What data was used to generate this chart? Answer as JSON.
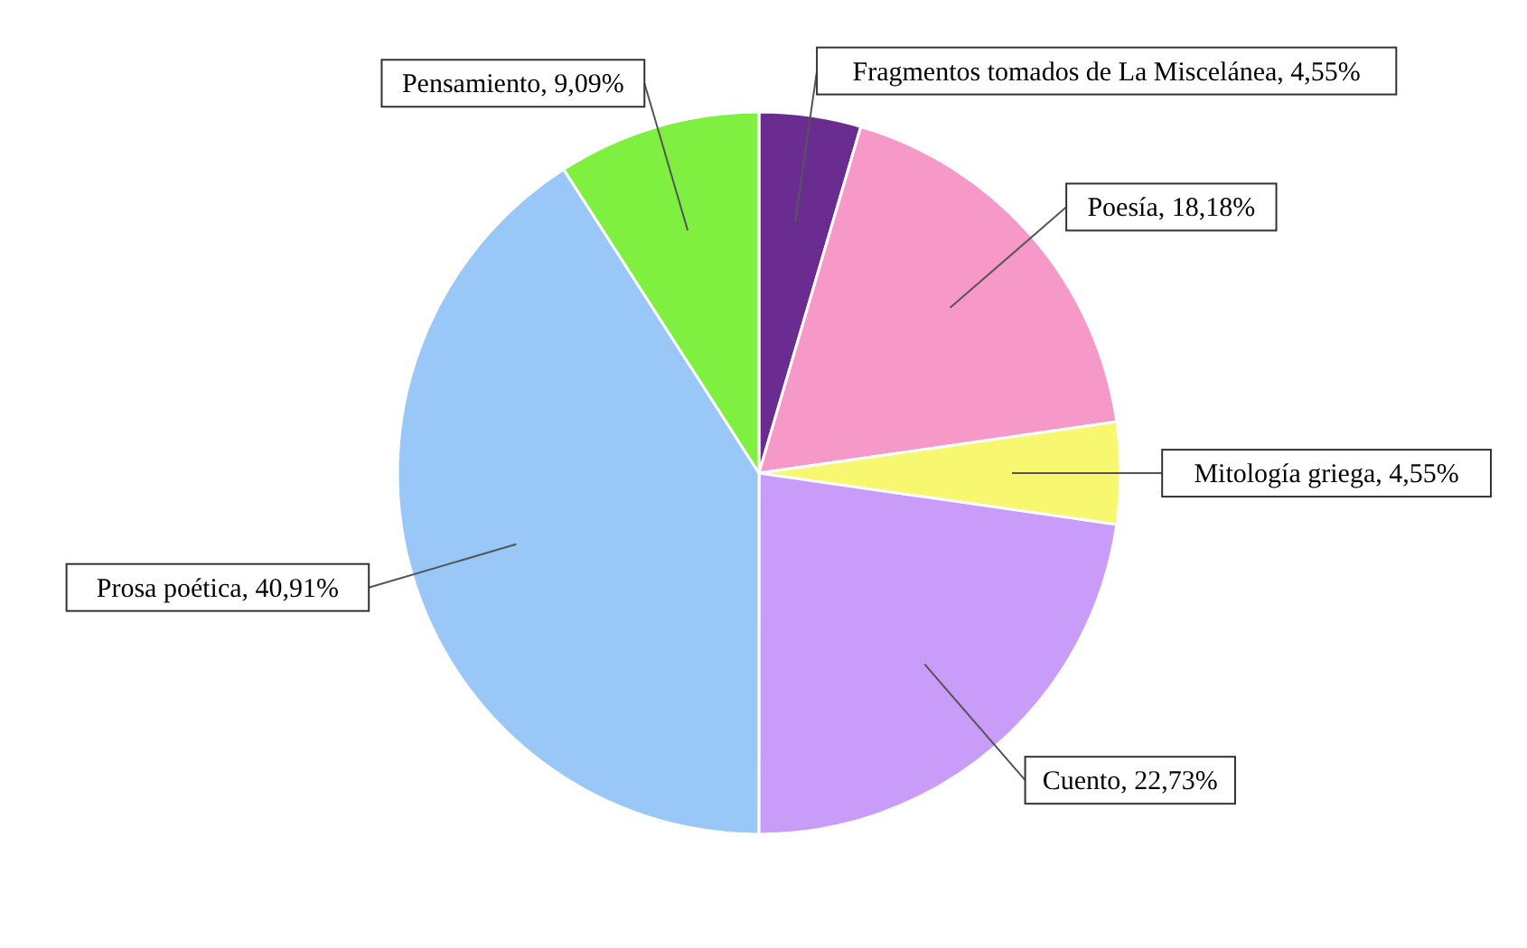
{
  "chart_data": {
    "type": "pie",
    "categories": [
      "Fragmentos tomados de La Miscelánea",
      "Poesía",
      "Mitología griega",
      "Cuento",
      "Prosa poética",
      "Pensamiento"
    ],
    "values": [
      4.55,
      18.18,
      4.55,
      22.73,
      40.91,
      9.09
    ],
    "value_labels": [
      "4,55%",
      "18,18%",
      "4,55%",
      "22,73%",
      "40,91%",
      "9,09%"
    ],
    "colors": [
      "#6a2c91",
      "#f799c8",
      "#f8f870",
      "#c89cf8",
      "#99c8f8",
      "#80f040"
    ]
  }
}
